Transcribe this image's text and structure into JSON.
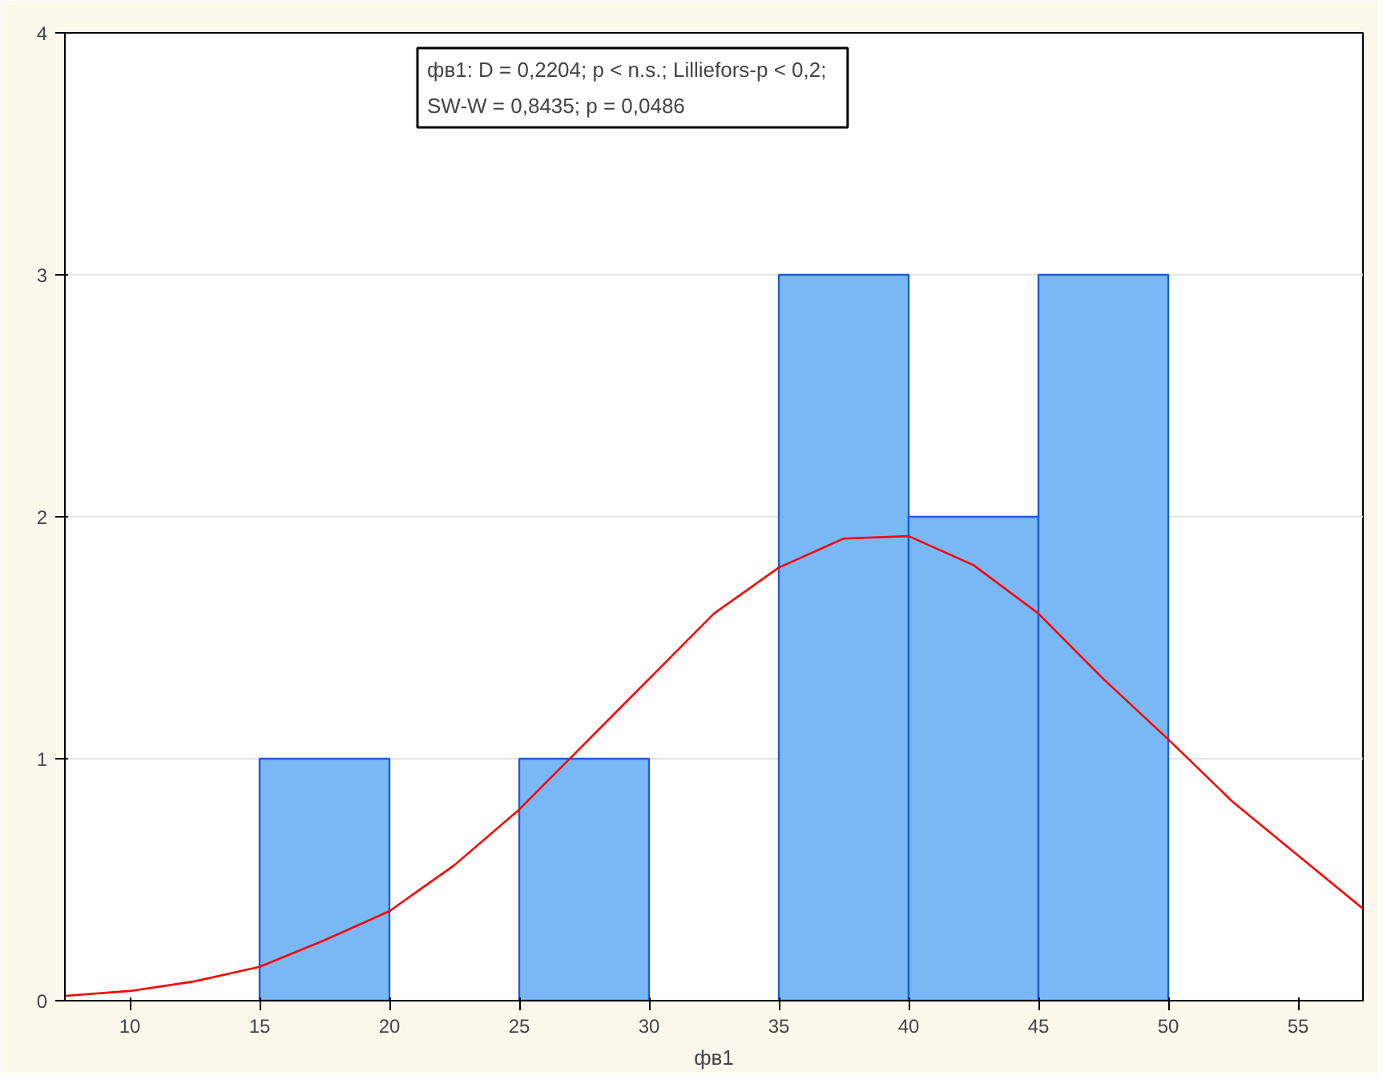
{
  "chart_data": {
    "type": "histogram",
    "xlabel": "фв1",
    "xlim": [
      7.5,
      57.5
    ],
    "ylim": [
      0,
      4
    ],
    "xticks": [
      10,
      15,
      20,
      25,
      30,
      35,
      40,
      45,
      50,
      55
    ],
    "yticks": [
      0,
      1,
      2,
      3,
      4
    ],
    "grid": "y",
    "annotations": [
      "фв1:   D = 0,2204; p < n.s.; Lilliefors-p < 0,2;\nSW-W = 0,8435; p = 0,0486"
    ],
    "series": [
      {
        "color": "#7ab8f5",
        "bins": [
          15,
          20,
          25,
          30,
          35,
          40,
          45,
          50
        ],
        "values": [
          1,
          0,
          1,
          0,
          3,
          2,
          3
        ]
      },
      {
        "type": "line",
        "color": "#ff0000",
        "x": [
          7.5,
          10,
          12.5,
          15,
          17.5,
          20,
          22.5,
          25,
          27.5,
          30,
          32.5,
          35,
          37.5,
          40,
          42.5,
          45,
          47.5,
          50,
          52.5,
          55,
          57.5
        ],
        "values": [
          0.02,
          0.04,
          0.08,
          0.14,
          0.25,
          0.37,
          0.56,
          0.79,
          1.06,
          1.33,
          1.6,
          1.79,
          1.91,
          1.92,
          1.8,
          1.6,
          1.33,
          1.08,
          0.82,
          0.6,
          0.38
        ]
      }
    ]
  }
}
